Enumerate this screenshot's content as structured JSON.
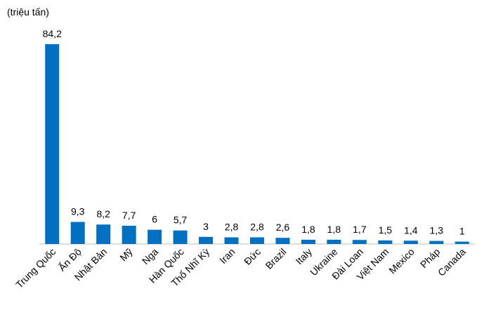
{
  "chart_data": {
    "type": "bar",
    "unit_label": "(triệu tấn)",
    "categories": [
      "Trung Quốc",
      "Ấn Độ",
      "Nhật Bản",
      "Mỹ",
      "Nga",
      "Hàn Quốc",
      "Thổ Nhĩ Kỳ",
      "Iran",
      "Đức",
      "Brazil",
      "Italy",
      "Ukraine",
      "Đài Loan",
      "Việt Nam",
      "Mexico",
      "Pháp",
      "Canada"
    ],
    "values": [
      84.2,
      9.3,
      8.2,
      7.7,
      6,
      5.7,
      3,
      2.8,
      2.8,
      2.6,
      1.8,
      1.8,
      1.7,
      1.5,
      1.4,
      1.3,
      1
    ],
    "value_labels": [
      "84,2",
      "9,3",
      "8,2",
      "7,7",
      "6",
      "5,7",
      "3",
      "2,8",
      "2,8",
      "2,6",
      "1,8",
      "1,8",
      "1,7",
      "1,5",
      "1,4",
      "1,3",
      "1"
    ],
    "color": "#0070c0"
  }
}
